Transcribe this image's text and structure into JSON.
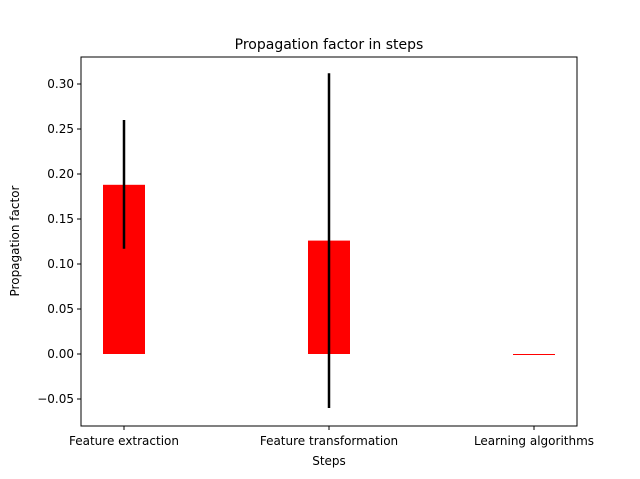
{
  "chart_data": {
    "type": "bar",
    "title": "Propagation factor in steps",
    "xlabel": "Steps",
    "ylabel": "Propagation factor",
    "categories": [
      "Feature extraction",
      "Feature transformation",
      "Learning algorithms"
    ],
    "values": [
      0.188,
      0.126,
      0.0
    ],
    "error_low": [
      0.117,
      -0.06,
      0.0
    ],
    "error_high": [
      0.26,
      0.312,
      0.0
    ],
    "ylim": [
      -0.08,
      0.33
    ],
    "yticks": [
      -0.05,
      0.0,
      0.05,
      0.1,
      0.15,
      0.2,
      0.25,
      0.3
    ],
    "ytick_labels": [
      "−0.05",
      "0.00",
      "0.05",
      "0.10",
      "0.15",
      "0.20",
      "0.25",
      "0.30"
    ],
    "grid": false,
    "bar_color": "#ff0000",
    "error_color": "#000000"
  }
}
